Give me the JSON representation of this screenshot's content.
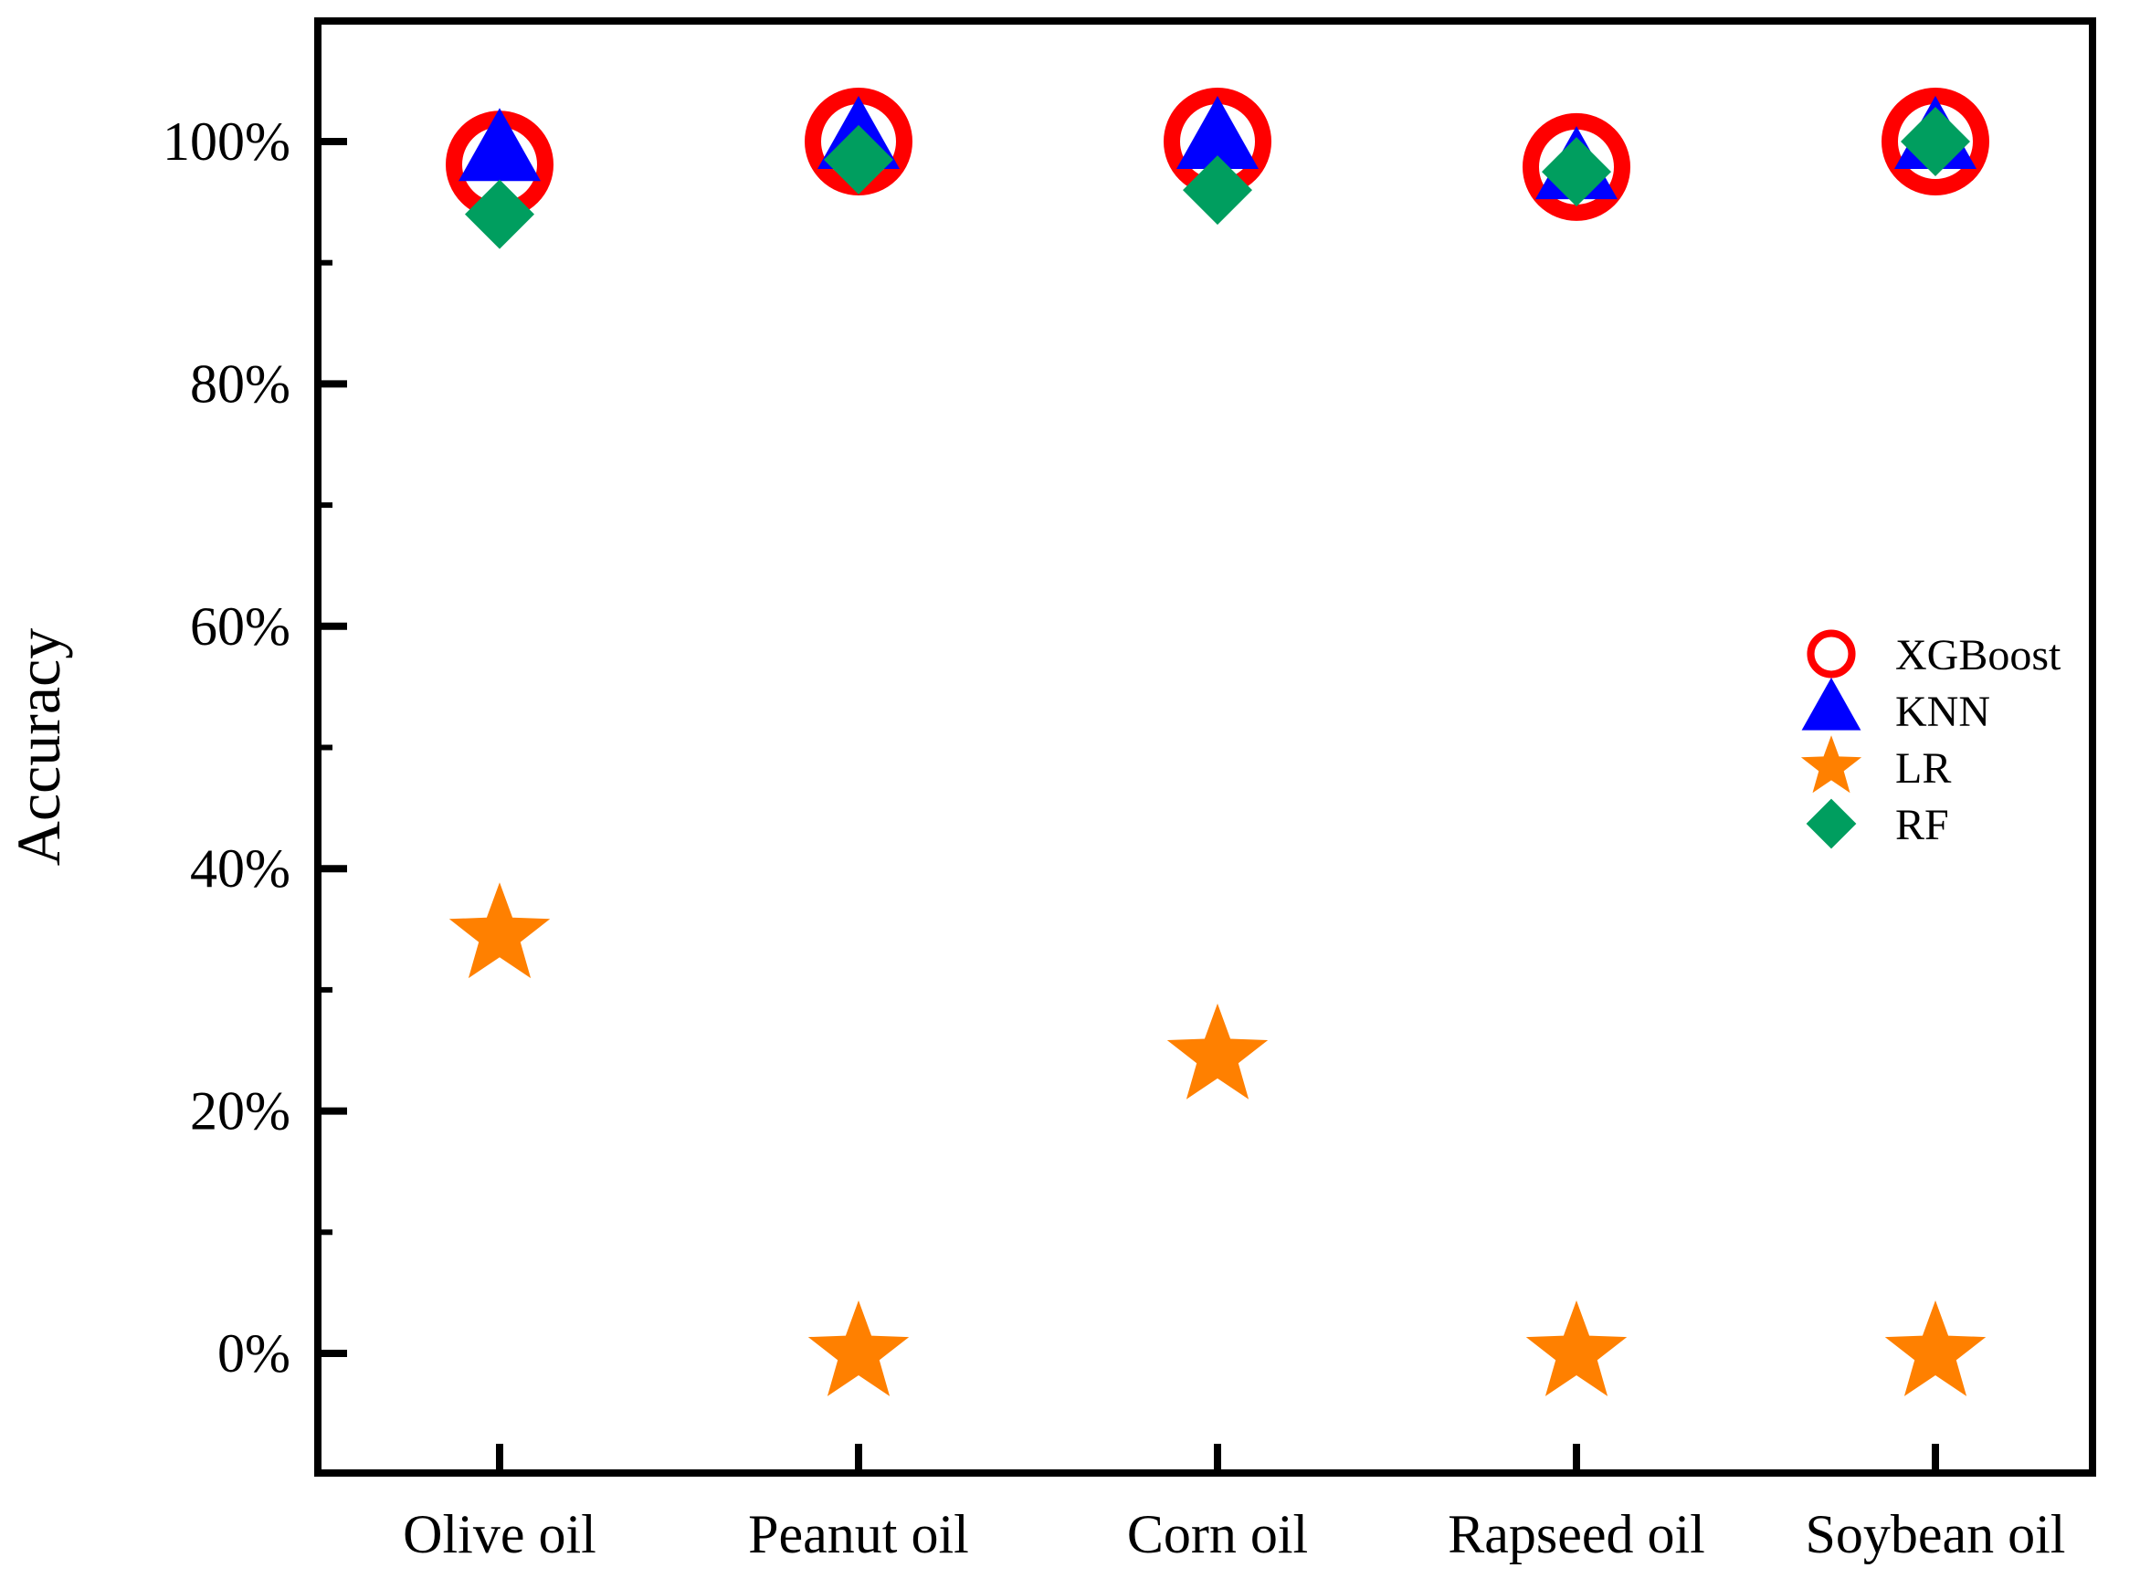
{
  "chart_data": {
    "type": "scatter",
    "categories": [
      "Olive oil",
      "Peanut oil",
      "Corn oil",
      "Rapseed oil",
      "Soybean oil"
    ],
    "ylabel": "Accuracy",
    "xlabel": "",
    "ylim": [
      -10,
      110
    ],
    "yticks": [
      0,
      20,
      40,
      60,
      80,
      100
    ],
    "ytick_labels": [
      "0%",
      "20%",
      "40%",
      "60%",
      "80%",
      "100%"
    ],
    "grid": false,
    "legend_position": "right",
    "series": [
      {
        "name": "XGBoost",
        "marker": "circle-open",
        "color": "#ff0000",
        "values": [
          98.1,
          100,
          100,
          97.9,
          100
        ]
      },
      {
        "name": "KNN",
        "marker": "triangle",
        "color": "#0000ff",
        "values": [
          99.0,
          100,
          100,
          97.5,
          100
        ]
      },
      {
        "name": "LR",
        "marker": "star",
        "color": "#ff8000",
        "values": [
          34.5,
          0,
          24.5,
          0,
          0
        ]
      },
      {
        "name": "RF",
        "marker": "diamond",
        "color": "#009e5f",
        "values": [
          94.0,
          98.5,
          96.0,
          97.5,
          100
        ]
      }
    ]
  }
}
